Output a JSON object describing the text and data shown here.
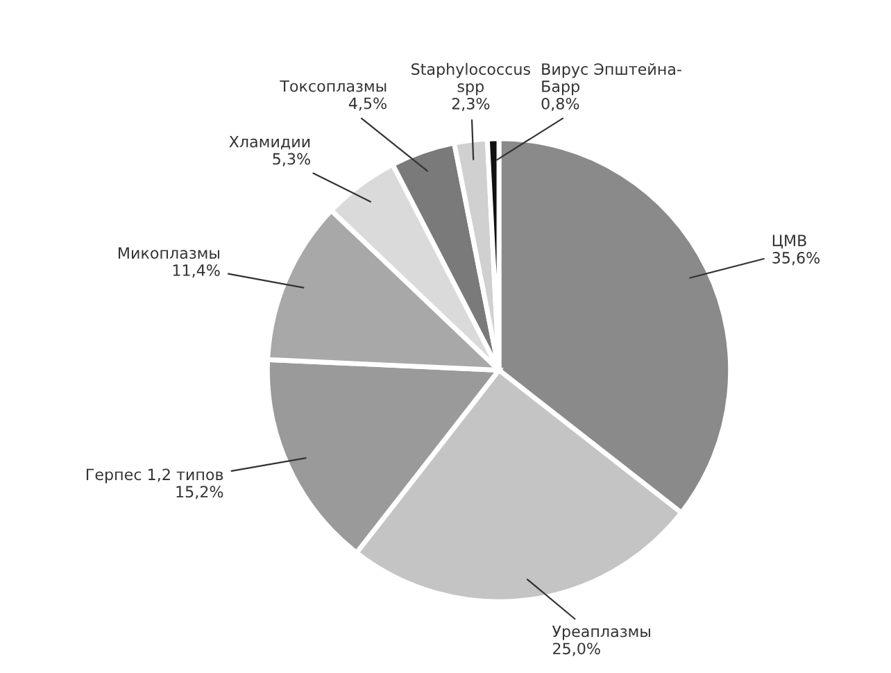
{
  "chart_data": {
    "type": "pie",
    "categories": [
      "ЦМВ",
      "Уреаплазмы",
      "Герпес 1,2 типов",
      "Микоплазмы",
      "Хламидии",
      "Токсоплазмы",
      "Staphylococcus\nspp",
      "Вирус Эпштейна-\nБарр"
    ],
    "values": [
      35.6,
      25.0,
      15.2,
      11.4,
      5.3,
      4.5,
      2.3,
      0.8
    ],
    "value_labels": [
      "35,6%",
      "25,0%",
      "15,2%",
      "11,4%",
      "5,3%",
      "4,5%",
      "2,3%",
      "0,8%"
    ],
    "colors": [
      "#8a8a8a",
      "#c4c4c4",
      "#9a9a9a",
      "#a8a8a8",
      "#dadada",
      "#7a7a7a",
      "#d0d0d0",
      "#111111"
    ]
  }
}
